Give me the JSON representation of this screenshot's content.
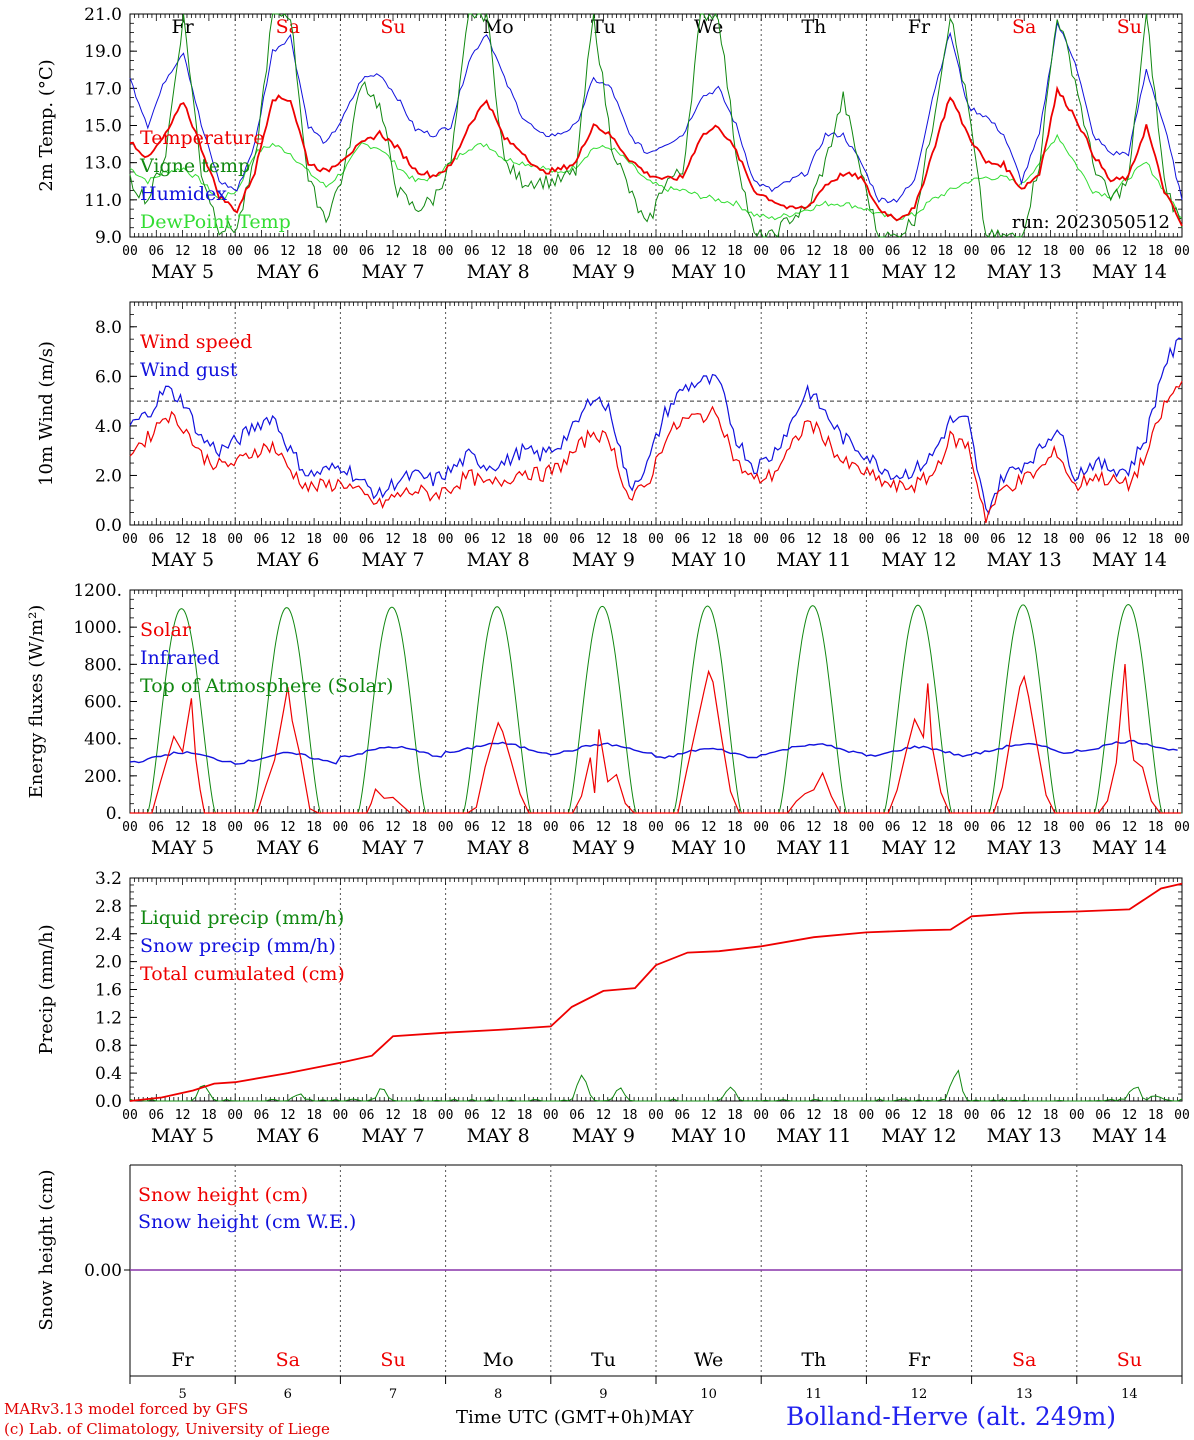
{
  "days": [
    "MAY  5",
    "MAY  6",
    "MAY  7",
    "MAY  8",
    "MAY  9",
    "MAY 10",
    "MAY 11",
    "MAY 12",
    "MAY 13",
    "MAY 14"
  ],
  "weekdays": [
    {
      "label": "Fr",
      "weekend": false
    },
    {
      "label": "Sa",
      "weekend": true
    },
    {
      "label": "Su",
      "weekend": true
    },
    {
      "label": "Mo",
      "weekend": false
    },
    {
      "label": "Tu",
      "weekend": false
    },
    {
      "label": "We",
      "weekend": false
    },
    {
      "label": "Th",
      "weekend": false
    },
    {
      "label": "Fr",
      "weekend": false
    },
    {
      "label": "Sa",
      "weekend": true
    },
    {
      "label": "Su",
      "weekend": true
    }
  ],
  "hour_ticks": [
    "00",
    "06",
    "12",
    "18"
  ],
  "day_numbers": [
    "5",
    "6",
    "7",
    "8",
    "9",
    "10",
    "11",
    "12",
    "13",
    "14"
  ],
  "colors": {
    "red": "#ee0000",
    "green": "#118811",
    "blue": "#1111dd",
    "lightgreen": "#33dd33",
    "purple": "#8833aa",
    "weekend": "#ee0000"
  },
  "footer": {
    "credit_line1": "MARv3.13 model forced by GFS",
    "credit_line2": "(c) Lab. of Climatology, University of Liege",
    "x_caption": "Time UTC (GMT+0h)MAY",
    "station": "Bolland-Herve (alt. 249m)"
  },
  "chart_data": [
    {
      "type": "line",
      "ylabel": "2m Temp. (°C)",
      "ylim": [
        9,
        21
      ],
      "yticks": [
        "9.0",
        "11.0",
        "13.0",
        "15.0",
        "17.0",
        "19.0",
        "21.0"
      ],
      "annotation": "run: 2023050512",
      "x": "time, 6-hourly from May 5 00h to May 15 00h",
      "series": [
        {
          "name": "Temperature",
          "color": "red",
          "values": [
            14.2,
            13.2,
            14.5,
            16.3,
            13.8,
            11.2,
            10.4,
            12.5,
            16.5,
            16.4,
            13.0,
            12.5,
            13.3,
            14.0,
            14.6,
            13.8,
            12.6,
            12.3,
            12.8,
            15.0,
            16.4,
            14.3,
            13.6,
            12.5,
            12.6,
            13.0,
            15.1,
            14.4,
            13.2,
            12.4,
            12.1,
            12.2,
            14.4,
            15.0,
            13.6,
            11.5,
            11.0,
            10.5,
            10.6,
            11.8,
            12.4,
            12.2,
            10.5,
            10.0,
            10.5,
            13.5,
            16.6,
            14.5,
            13.0,
            12.9,
            11.6,
            12.4,
            16.9,
            15.5,
            13.5,
            12.0,
            12.2,
            15.0,
            11.5,
            9.6
          ]
        },
        {
          "name": "Vigne temp",
          "color": "green",
          "values": [
            12.0,
            11.0,
            13.5,
            21.0,
            12.5,
            9.5,
            9.5,
            13.0,
            21.0,
            21.0,
            12.0,
            10.0,
            12.5,
            17.5,
            16.0,
            11.5,
            10.5,
            11.0,
            13.0,
            21.0,
            21.0,
            13.0,
            12.0,
            12.0,
            12.0,
            12.5,
            21.0,
            14.0,
            11.5,
            9.5,
            12.0,
            12.5,
            21.0,
            21.0,
            13.5,
            9.0,
            9.0,
            10.0,
            10.5,
            13.0,
            16.5,
            12.5,
            9.0,
            9.0,
            10.0,
            15.0,
            21.0,
            16.0,
            9.0,
            9.0,
            9.0,
            13.0,
            21.0,
            17.5,
            13.0,
            11.0,
            12.0,
            21.0,
            12.0,
            9.5
          ]
        },
        {
          "name": "Humidex",
          "color": "blue",
          "values": [
            17.5,
            15.0,
            17.5,
            19.0,
            15.0,
            12.0,
            11.5,
            14.0,
            19.0,
            19.8,
            15.0,
            14.0,
            15.5,
            17.5,
            17.8,
            16.5,
            14.8,
            14.5,
            15.0,
            18.5,
            20.0,
            17.5,
            15.5,
            14.5,
            14.5,
            15.0,
            17.5,
            17.0,
            14.5,
            13.5,
            14.0,
            14.5,
            16.5,
            17.0,
            15.0,
            12.0,
            11.5,
            12.0,
            12.5,
            14.5,
            14.5,
            13.0,
            11.0,
            11.0,
            12.0,
            16.5,
            20.0,
            16.0,
            15.5,
            14.5,
            12.0,
            14.5,
            20.5,
            18.5,
            14.5,
            13.5,
            13.5,
            18.0,
            15.0,
            11.0
          ]
        },
        {
          "name": "DewPoint Temp",
          "color": "lightgreen",
          "values": [
            12.7,
            12.0,
            12.5,
            12.7,
            12.0,
            11.0,
            11.5,
            13.5,
            14.0,
            13.5,
            12.5,
            11.7,
            12.6,
            14.0,
            13.8,
            12.8,
            12.0,
            12.2,
            13.0,
            13.8,
            14.0,
            13.2,
            13.0,
            12.8,
            12.4,
            12.8,
            13.8,
            13.8,
            13.0,
            12.0,
            11.6,
            11.5,
            11.2,
            11.0,
            10.8,
            10.2,
            10.0,
            10.2,
            10.5,
            10.8,
            10.8,
            10.6,
            10.2,
            10.0,
            10.2,
            11.0,
            11.5,
            12.0,
            12.2,
            12.2,
            11.8,
            13.0,
            14.5,
            13.0,
            11.5,
            11.2,
            12.2,
            13.0,
            11.5,
            10.0
          ]
        }
      ],
      "legend_placement": "top-left"
    },
    {
      "type": "line",
      "ylabel": "10m Wind (m/s)",
      "ylim": [
        0,
        9
      ],
      "yticks": [
        "0.0",
        "2.0",
        "4.0",
        "6.0",
        "8.0"
      ],
      "reference_line": 5.0,
      "series": [
        {
          "name": "Wind speed",
          "color": "red",
          "values": [
            3.0,
            3.5,
            4.5,
            4.0,
            2.8,
            2.4,
            2.5,
            3.0,
            3.2,
            2.2,
            1.5,
            1.6,
            1.7,
            1.2,
            0.8,
            1.2,
            1.4,
            1.2,
            1.5,
            2.0,
            1.6,
            1.8,
            2.2,
            2.0,
            2.3,
            3.0,
            3.8,
            3.3,
            1.0,
            1.6,
            3.5,
            4.2,
            4.4,
            4.5,
            2.5,
            1.8,
            2.0,
            3.0,
            4.2,
            3.5,
            2.5,
            2.2,
            1.8,
            1.5,
            1.6,
            2.0,
            3.5,
            3.2,
            0.3,
            1.5,
            1.8,
            2.2,
            3.0,
            1.5,
            2.0,
            1.8,
            1.6,
            2.8,
            4.8,
            5.8
          ]
        },
        {
          "name": "Wind gust",
          "color": "blue",
          "values": [
            4.0,
            4.5,
            5.5,
            5.0,
            3.5,
            3.0,
            3.4,
            4.0,
            4.4,
            3.0,
            2.0,
            2.2,
            2.4,
            1.7,
            1.2,
            1.8,
            2.0,
            1.8,
            2.2,
            2.8,
            2.4,
            2.5,
            3.0,
            2.8,
            3.2,
            4.0,
            5.3,
            4.5,
            1.5,
            2.4,
            4.5,
            5.5,
            5.8,
            5.8,
            3.5,
            2.3,
            2.8,
            4.0,
            5.5,
            4.5,
            3.5,
            3.0,
            2.4,
            2.0,
            2.2,
            2.8,
            4.2,
            4.2,
            0.5,
            2.0,
            2.4,
            3.0,
            4.0,
            2.0,
            2.5,
            2.3,
            2.2,
            3.6,
            6.5,
            7.5
          ]
        }
      ],
      "legend_placement": "top-left"
    },
    {
      "type": "line",
      "ylabel": "Energy fluxes (W/m²)",
      "ylim": [
        0,
        1200
      ],
      "yticks": [
        "0.",
        "200.",
        "400.",
        "600.",
        "800.",
        "1000.",
        "1200."
      ],
      "series": [
        {
          "name": "Solar",
          "color": "red",
          "peaks": [
            {
              "day": 5,
              "h": [
                5,
                7,
                10,
                12,
                14,
                15,
                16,
                17
              ],
              "v": [
                0,
                200,
                420,
                300,
                600,
                300,
                100,
                0
              ]
            },
            {
              "day": 6,
              "h": [
                5,
                7,
                9,
                11,
                12,
                13,
                15,
                17,
                19
              ],
              "v": [
                0,
                120,
                300,
                520,
                650,
                500,
                300,
                40,
                0
              ]
            },
            {
              "day": 7,
              "h": [
                6,
                7,
                8,
                10,
                12,
                14,
                16,
                18
              ],
              "v": [
                0,
                60,
                120,
                100,
                90,
                60,
                20,
                0
              ]
            },
            {
              "day": 8,
              "h": [
                5,
                7,
                9,
                11,
                12,
                13,
                15,
                17,
                19
              ],
              "v": [
                0,
                60,
                250,
                400,
                480,
                420,
                300,
                100,
                0
              ]
            },
            {
              "day": 9,
              "h": [
                5,
                7,
                9,
                10,
                11,
                13,
                15,
                17,
                19
              ],
              "v": [
                0,
                80,
                280,
                120,
                450,
                180,
                220,
                40,
                0
              ]
            },
            {
              "day": 10,
              "h": [
                5,
                7,
                9,
                11,
                12,
                13,
                15,
                17,
                19
              ],
              "v": [
                0,
                200,
                420,
                650,
                780,
                700,
                380,
                120,
                0
              ]
            },
            {
              "day": 11,
              "h": [
                6,
                8,
                10,
                12,
                14,
                16,
                18
              ],
              "v": [
                0,
                50,
                100,
                150,
                200,
                100,
                0
              ]
            },
            {
              "day": 12,
              "h": [
                5,
                7,
                9,
                11,
                13,
                14,
                15,
                17,
                19
              ],
              "v": [
                0,
                120,
                350,
                500,
                420,
                720,
                350,
                100,
                0
              ]
            },
            {
              "day": 13,
              "h": [
                5,
                7,
                9,
                11,
                12,
                13,
                15,
                17,
                19
              ],
              "v": [
                0,
                150,
                450,
                700,
                760,
                650,
                380,
                80,
                0
              ]
            },
            {
              "day": 14,
              "h": [
                5,
                7,
                9,
                11,
                12,
                13,
                15,
                17,
                19
              ],
              "v": [
                0,
                80,
                300,
                780,
                420,
                300,
                230,
                60,
                0
              ]
            }
          ]
        },
        {
          "name": "Infrared",
          "color": "blue",
          "base": [
            300,
            295,
            330,
            350,
            345,
            320,
            345,
            330,
            345,
            360
          ]
        },
        {
          "name": "Top of Atmosphere (Solar)",
          "color": "green",
          "peak": [
            1100,
            1105,
            1108,
            1110,
            1112,
            1114,
            1116,
            1118,
            1120,
            1122
          ],
          "sunrise_h": 4.0,
          "sunset_h": 19.5
        }
      ],
      "legend_placement": "top-left"
    },
    {
      "type": "line",
      "ylabel": "Precip (mm/h)",
      "ylim": [
        0,
        3.2
      ],
      "yticks": [
        "0.0",
        "0.4",
        "0.8",
        "1.2",
        "1.6",
        "2.0",
        "2.4",
        "2.8",
        "3.2"
      ],
      "series": [
        {
          "name": "Liquid precip (mm/h)",
          "color": "green",
          "bursts": [
            [
              0.7,
              0.3
            ],
            [
              1.6,
              0.12
            ],
            [
              2.4,
              0.2
            ],
            [
              4.3,
              0.5
            ],
            [
              4.65,
              0.2
            ],
            [
              5.7,
              0.3
            ],
            [
              7.85,
              0.55
            ],
            [
              9.55,
              0.3
            ],
            [
              9.75,
              0.1
            ]
          ]
        },
        {
          "name": "Snow precip (mm/h)",
          "color": "blue",
          "values": []
        },
        {
          "name": "Total cumulated (cm)",
          "color": "red",
          "x": [
            0,
            0.3,
            0.6,
            0.8,
            1.0,
            1.5,
            2.0,
            2.3,
            2.5,
            3.0,
            3.5,
            4.0,
            4.2,
            4.5,
            4.8,
            5.0,
            5.3,
            5.6,
            6.0,
            6.5,
            7.0,
            7.5,
            7.8,
            8.0,
            8.5,
            9.0,
            9.5,
            9.8,
            10.0
          ],
          "values": [
            0,
            0.05,
            0.15,
            0.25,
            0.27,
            0.4,
            0.55,
            0.65,
            0.93,
            0.98,
            1.02,
            1.07,
            1.35,
            1.58,
            1.62,
            1.95,
            2.13,
            2.15,
            2.22,
            2.35,
            2.42,
            2.45,
            2.46,
            2.65,
            2.7,
            2.72,
            2.75,
            3.05,
            3.12
          ]
        }
      ],
      "legend_placement": "top-left"
    },
    {
      "type": "line",
      "ylabel": "Snow height (cm)",
      "yticks": [
        "0.00"
      ],
      "series": [
        {
          "name": "Snow height (cm)",
          "color": "red",
          "values": [
            0,
            0
          ]
        },
        {
          "name": "Snow height (cm W.E.)",
          "color": "blue",
          "values": [
            0,
            0
          ]
        }
      ],
      "legend_placement": "top-left"
    }
  ]
}
